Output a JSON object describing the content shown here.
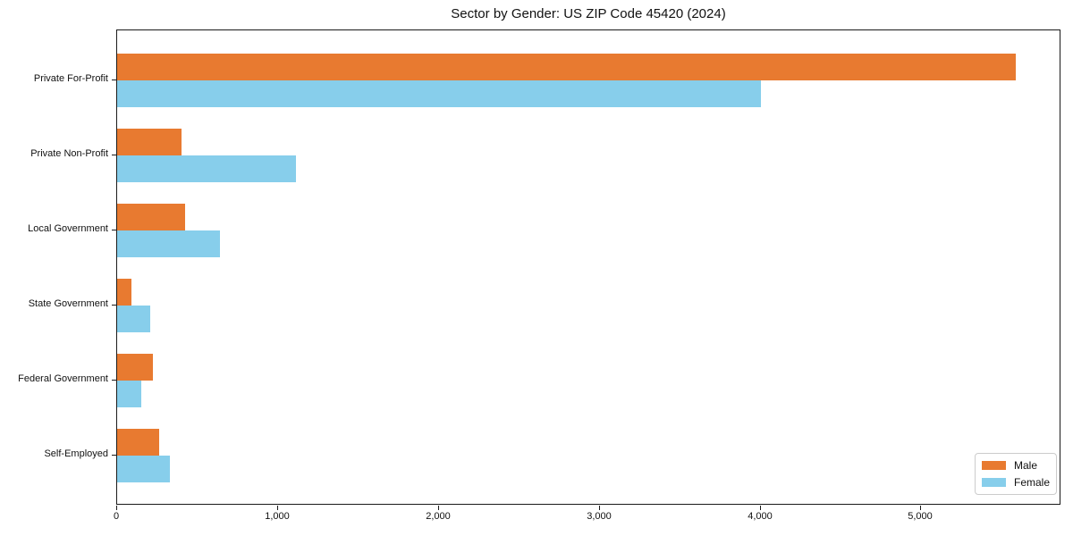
{
  "figure": {
    "title": "Sector by Gender: US ZIP Code 45420 (2024)"
  },
  "chart_data": {
    "type": "bar",
    "orientation": "horizontal",
    "title": "Sector by Gender: US ZIP Code 45420 (2024)",
    "categories": [
      "Private For-Profit",
      "Private Non-Profit",
      "Local Government",
      "State Government",
      "Federal Government",
      "Self-Employed"
    ],
    "series": [
      {
        "name": "Male",
        "color": "#e87a30",
        "values": [
          5585,
          400,
          420,
          90,
          220,
          260
        ]
      },
      {
        "name": "Female",
        "color": "#87ceeb",
        "values": [
          4005,
          1110,
          640,
          205,
          150,
          330
        ]
      }
    ],
    "xlabel": "",
    "ylabel": "",
    "xlim": [
      0,
      5870
    ],
    "x_ticks": [
      0,
      1000,
      2000,
      3000,
      4000,
      5000
    ],
    "x_tick_labels": [
      "0",
      "1,000",
      "2,000",
      "3,000",
      "4,000",
      "5,000"
    ],
    "grid": false,
    "legend": {
      "position": "lower right"
    }
  }
}
